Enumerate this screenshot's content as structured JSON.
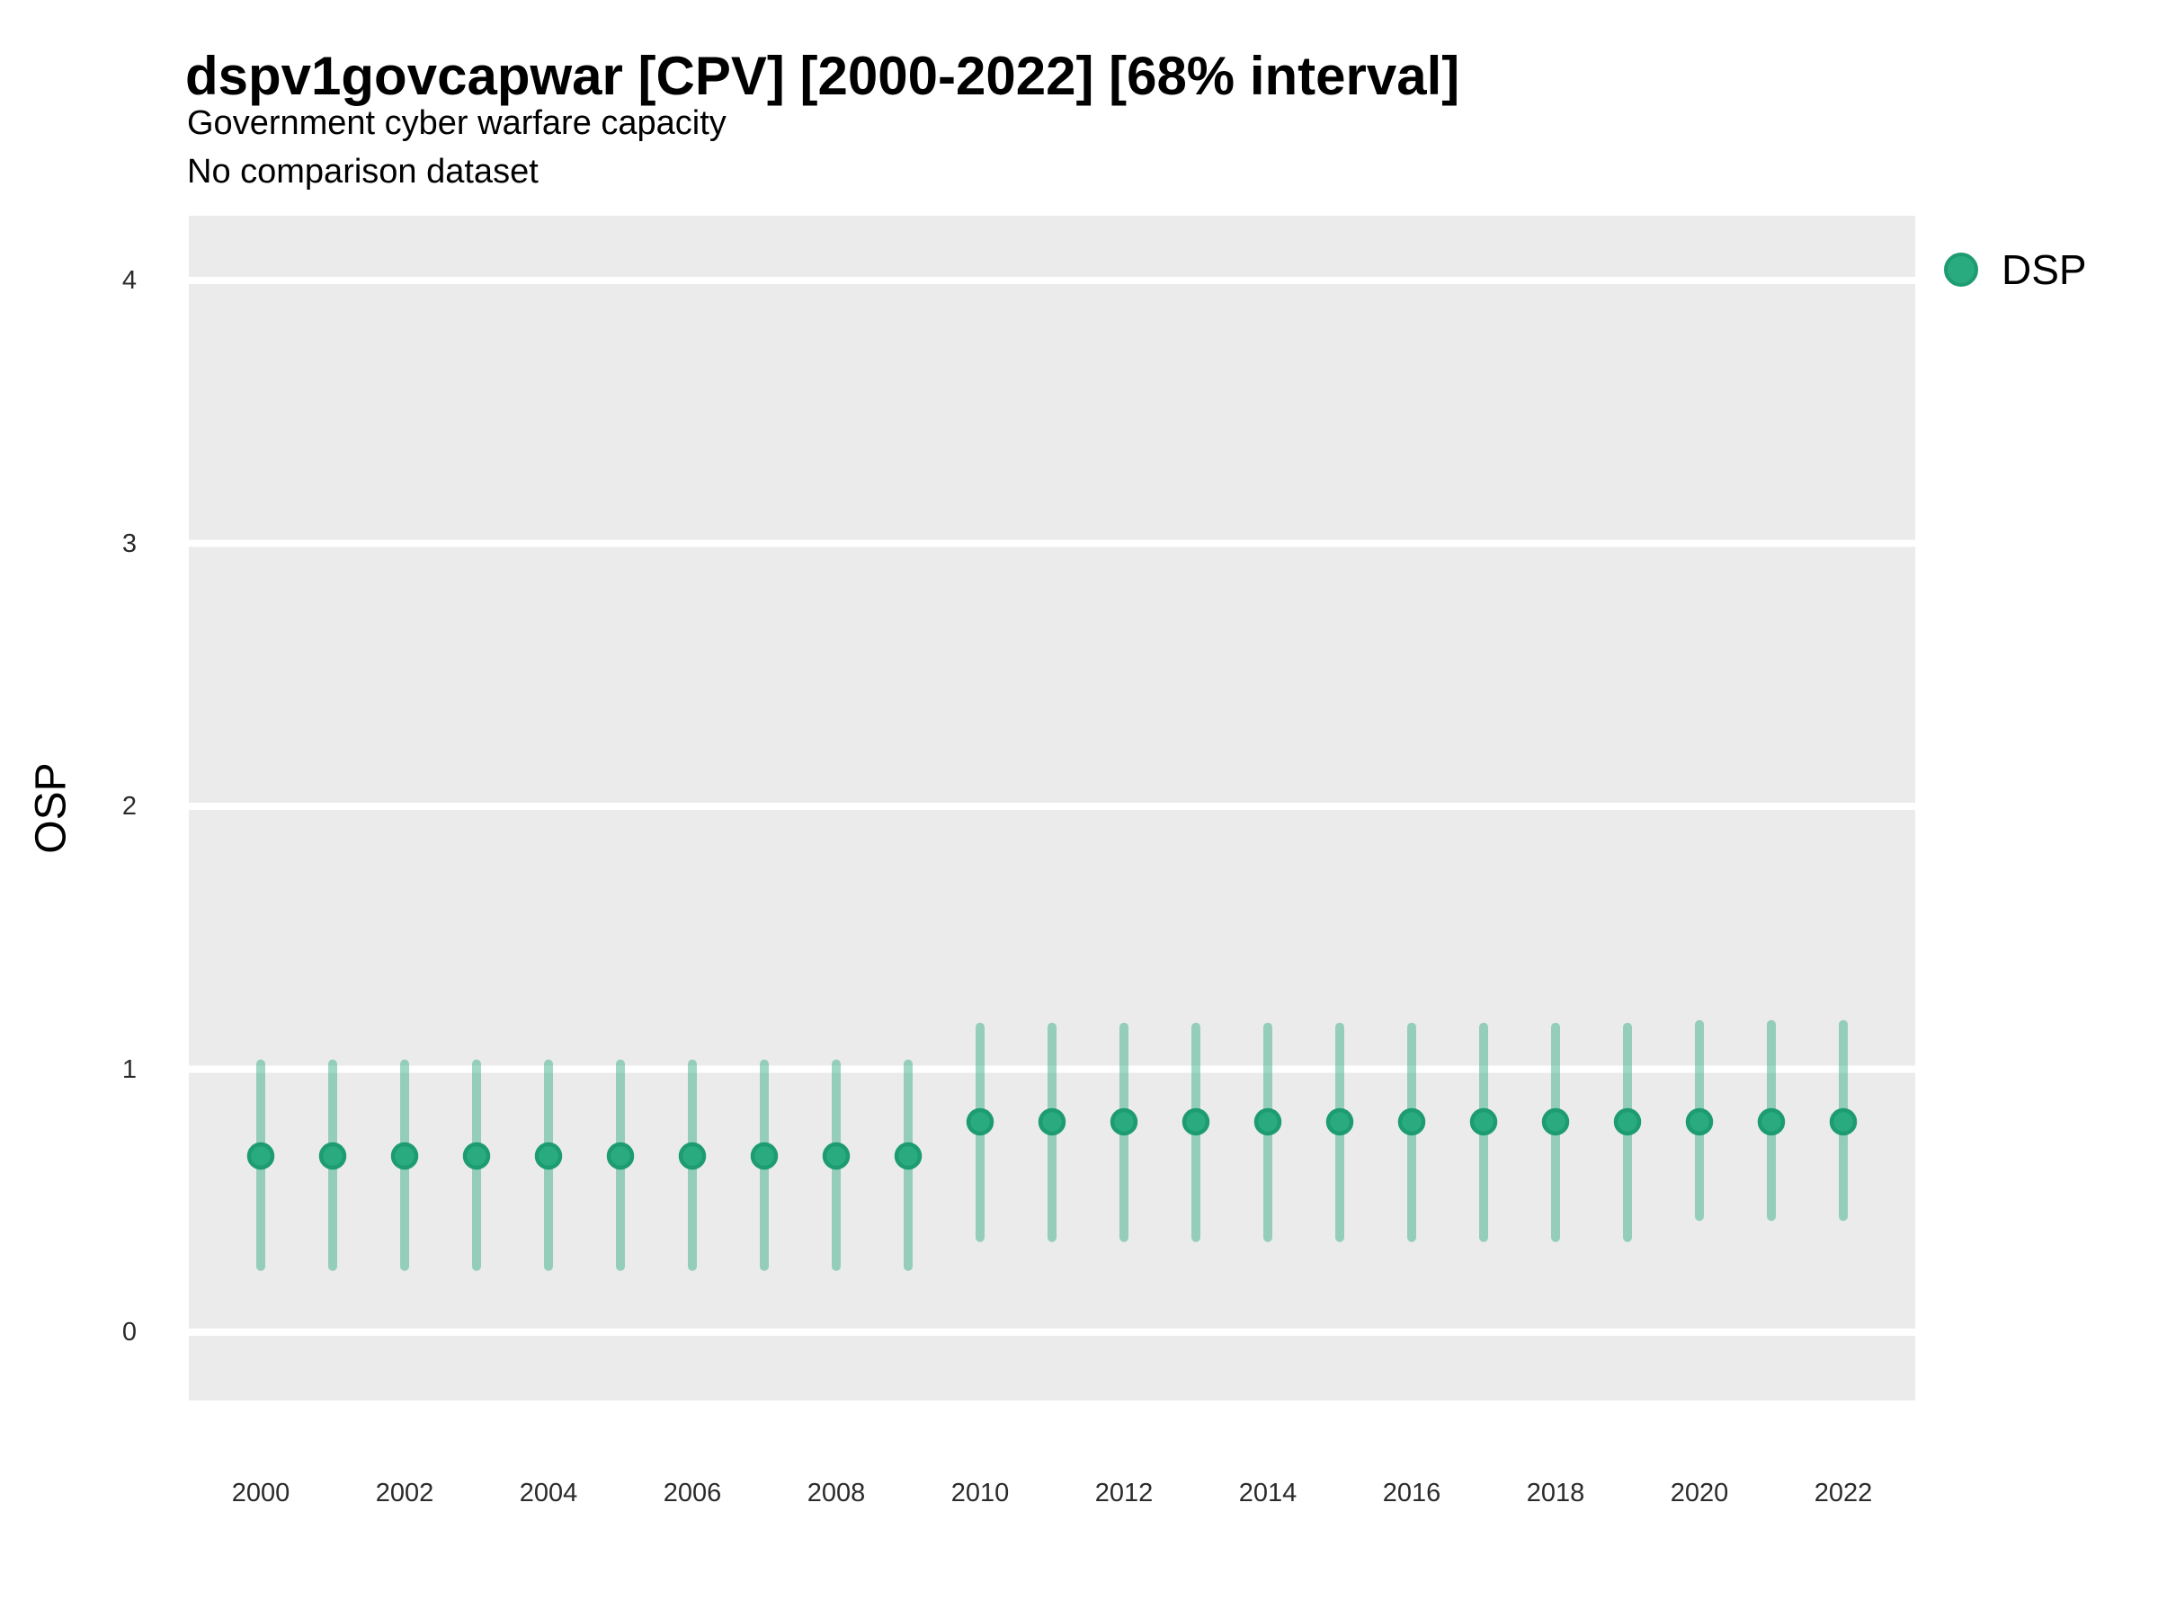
{
  "page": {
    "background": "#FFFFFF"
  },
  "header": {
    "title": "dspv1govcapwar [CPV] [2000-2022] [68% interval]",
    "subtitle": "Government cyber warfare capacity",
    "note": "No comparison dataset"
  },
  "y_axis": {
    "label": "OSP",
    "tick_labels": [
      "0",
      "1",
      "2",
      "3",
      "4"
    ]
  },
  "x_axis": {
    "tick_labels": [
      "2000",
      "2002",
      "2004",
      "2006",
      "2008",
      "2010",
      "2012",
      "2014",
      "2016",
      "2018",
      "2020",
      "2022"
    ]
  },
  "legend": {
    "items": [
      {
        "label": "DSP",
        "color": "#2AAA7F",
        "border_color": "#1E9C71"
      }
    ]
  },
  "colors": {
    "panel_background": "#EBEBEB",
    "gridline": "#FFFFFF",
    "point_fill": "#2AAA7F",
    "point_border": "#1E9C71",
    "interval_line": "#2AAA7F",
    "interval_opacity": 0.45,
    "text": "#000000",
    "tick_text": "#2b2b2b"
  },
  "chart_data": {
    "type": "scatter",
    "mark": "point-with-interval (pointrange)",
    "title": "dspv1govcapwar [CPV] [2000-2022] [68% interval]",
    "subtitle": "Government cyber warfare capacity",
    "note": "No comparison dataset",
    "xlabel": "",
    "ylabel": "OSP",
    "interval": "68%",
    "x": [
      2000,
      2001,
      2002,
      2003,
      2004,
      2005,
      2006,
      2007,
      2008,
      2009,
      2010,
      2011,
      2012,
      2013,
      2014,
      2015,
      2016,
      2017,
      2018,
      2019,
      2020,
      2021,
      2022
    ],
    "series": [
      {
        "name": "DSP",
        "values": [
          0.67,
          0.67,
          0.67,
          0.67,
          0.67,
          0.67,
          0.67,
          0.67,
          0.67,
          0.67,
          0.8,
          0.8,
          0.8,
          0.8,
          0.8,
          0.8,
          0.8,
          0.8,
          0.8,
          0.8,
          0.8,
          0.8,
          0.8
        ],
        "lower": [
          0.25,
          0.25,
          0.25,
          0.25,
          0.25,
          0.25,
          0.25,
          0.25,
          0.25,
          0.25,
          0.36,
          0.36,
          0.36,
          0.36,
          0.36,
          0.36,
          0.36,
          0.36,
          0.36,
          0.36,
          0.44,
          0.44,
          0.44
        ],
        "upper": [
          1.02,
          1.02,
          1.02,
          1.02,
          1.02,
          1.02,
          1.02,
          1.02,
          1.02,
          1.02,
          1.16,
          1.16,
          1.16,
          1.16,
          1.16,
          1.16,
          1.16,
          1.16,
          1.16,
          1.16,
          1.17,
          1.17,
          1.17
        ]
      }
    ],
    "x_tick_values": [
      2000,
      2002,
      2004,
      2006,
      2008,
      2010,
      2012,
      2014,
      2016,
      2018,
      2020,
      2022
    ],
    "y_tick_values": [
      0,
      1,
      2,
      3,
      4
    ],
    "xlim": [
      1999.0,
      2023.0
    ],
    "ylim": [
      -0.26,
      4.25
    ],
    "grid": "horizontal major gridlines only, white on gray panel",
    "legend_position": "right-top"
  }
}
